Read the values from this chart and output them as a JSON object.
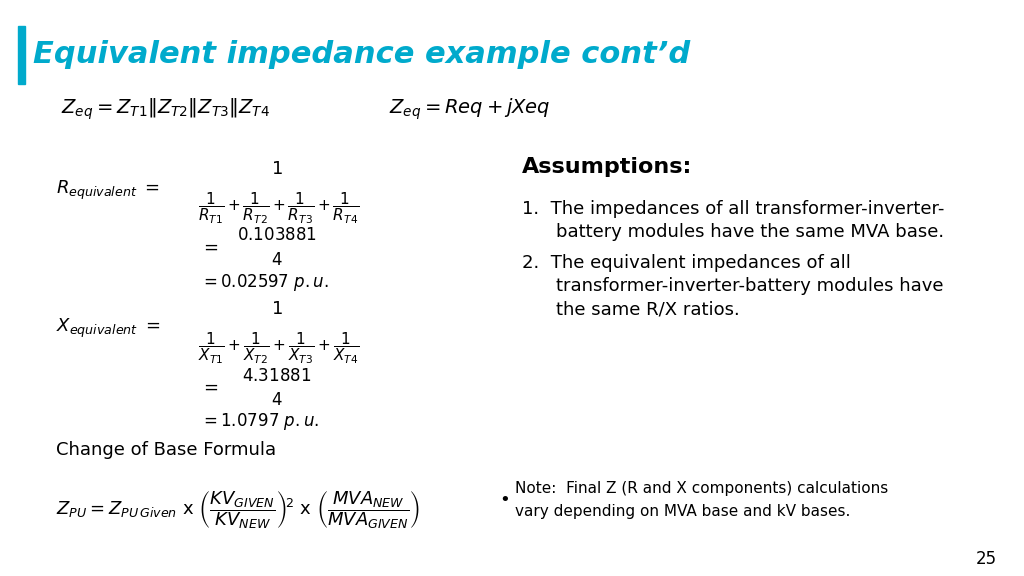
{
  "title": "Equivalent impedance example cont’d",
  "title_color": "#00AACC",
  "background_color": "#FFFFFF",
  "accent_bar_color": "#00AACC",
  "page_number": "25",
  "assumptions_title": "Assumptions:",
  "change_of_base": "Change of Base Formula",
  "note_text": "Note:  Final Z (R and X components) calculations\nvary depending on MVA base and kV bases."
}
